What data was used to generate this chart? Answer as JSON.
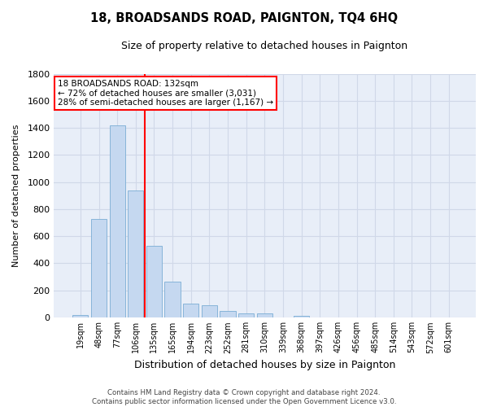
{
  "title": "18, BROADSANDS ROAD, PAIGNTON, TQ4 6HQ",
  "subtitle": "Size of property relative to detached houses in Paignton",
  "xlabel": "Distribution of detached houses by size in Paignton",
  "ylabel": "Number of detached properties",
  "bar_labels": [
    "19sqm",
    "48sqm",
    "77sqm",
    "106sqm",
    "135sqm",
    "165sqm",
    "194sqm",
    "223sqm",
    "252sqm",
    "281sqm",
    "310sqm",
    "339sqm",
    "368sqm",
    "397sqm",
    "426sqm",
    "456sqm",
    "485sqm",
    "514sqm",
    "543sqm",
    "572sqm",
    "601sqm"
  ],
  "bar_values": [
    20,
    730,
    1420,
    935,
    530,
    265,
    105,
    90,
    50,
    30,
    28,
    0,
    15,
    0,
    0,
    0,
    0,
    0,
    0,
    0,
    0
  ],
  "bar_color": "#c5d8f0",
  "bar_edge_color": "#7aadd4",
  "grid_color": "#d0d8e8",
  "annotation_box_text": "18 BROADSANDS ROAD: 132sqm\n← 72% of detached houses are smaller (3,031)\n28% of semi-detached houses are larger (1,167) →",
  "box_facecolor": "white",
  "box_edgecolor": "red",
  "vline_color": "red",
  "vline_x_index": 4,
  "ylim": [
    0,
    1800
  ],
  "yticks": [
    0,
    200,
    400,
    600,
    800,
    1000,
    1200,
    1400,
    1600,
    1800
  ],
  "footnote": "Contains HM Land Registry data © Crown copyright and database right 2024.\nContains public sector information licensed under the Open Government Licence v3.0.",
  "bg_color": "#ffffff",
  "plot_bg_color": "#e8eef8"
}
